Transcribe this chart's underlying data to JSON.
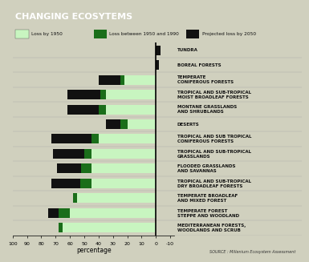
{
  "title": "CHANGING ECOSYTEMS",
  "categories": [
    "MEDITERRANEAN FORESTS,\nWOODLANDS AND SCRUB",
    "TEMPERATE FOREST\nSTEPPE AND WOODLAND",
    "TEMPERATE BROADLEAF\nAND MIXED FOREST",
    "TROPICAL AND SUB-TROPICAL\nDRY BROADLEAF FORESTS",
    "FLOODED GRASSLANDS\nAND SAVANNAS",
    "TROPICAL AND SUB-TROPICAL\nGRASSLANDS",
    "TROPICAL AND SUB TROPICAL\nCONIFEROUS FORESTS",
    "DESERTS",
    "MONTANE GRASSLANDS\nAND SHRUBLANDS",
    "TROPICAL AND SUB-TROPICAL\nMOIST BROADLEAF FORESTS",
    "TEMPERATE\nCONIFEROUS FORESTS",
    "BOREAL FORESTS",
    "TUNDRA"
  ],
  "loss_by_1950": [
    65,
    60,
    55,
    45,
    45,
    45,
    40,
    20,
    35,
    35,
    22,
    0,
    0
  ],
  "loss_1950_1990": [
    3,
    8,
    3,
    8,
    7,
    5,
    5,
    5,
    5,
    4,
    3,
    0,
    0
  ],
  "projected_2050": [
    0,
    7,
    0,
    20,
    17,
    22,
    28,
    10,
    22,
    23,
    15,
    2,
    3
  ],
  "boreal_proj_right": true,
  "tundra_proj_right": true,
  "color_1950": "#c8f5c0",
  "color_1950_1990": "#1a6e1a",
  "color_2050": "#111111",
  "bg_color": "#d0d0be",
  "title_bg": "#1a1a1a",
  "title_color": "#ffffff",
  "xlabel": "percentage",
  "source_text": "SOURCE : Millenium Ecosystem Assessment",
  "legend": [
    "Loss by 1950",
    "Loss between 1950 and 1990",
    "Projected loss by 2050"
  ],
  "xtick_labels": [
    "100",
    "90",
    "80",
    "70",
    "60",
    "50",
    "40",
    "30",
    "20",
    "10",
    "0",
    "-10"
  ],
  "xtick_vals": [
    100,
    90,
    80,
    70,
    60,
    50,
    40,
    30,
    20,
    10,
    0,
    -10
  ]
}
